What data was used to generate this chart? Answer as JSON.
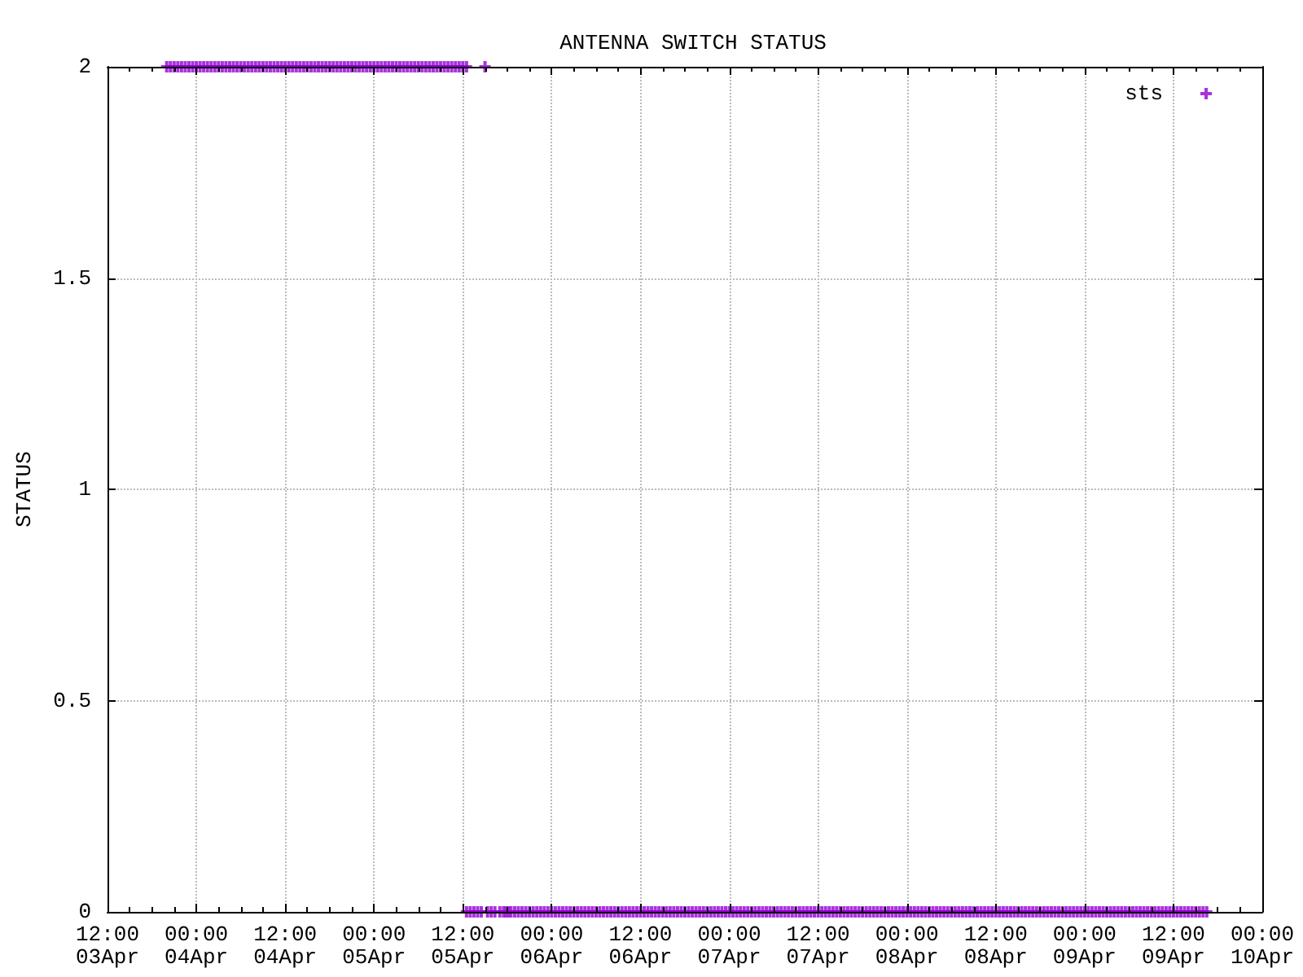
{
  "chart_data": {
    "type": "scatter",
    "title": "ANTENNA SWITCH STATUS",
    "ylabel": "STATUS",
    "x": [
      "--04-03T20:00",
      "--04-03T20:30",
      "--04-03T21:00",
      "--04-03T21:30",
      "--04-03T22:00",
      "--04-03T22:30",
      "--04-03T23:00",
      "--04-03T23:30",
      "--04-04T00:00",
      "--04-04T00:30",
      "--04-04T01:00",
      "--04-04T01:30",
      "--04-04T02:00",
      "--04-04T02:30",
      "--04-04T03:00",
      "--04-04T03:30",
      "--04-04T04:00",
      "--04-04T04:30",
      "--04-04T05:00",
      "--04-04T05:30",
      "--04-04T06:00",
      "--04-04T06:30",
      "--04-04T07:00",
      "--04-04T07:30",
      "--04-04T08:00",
      "--04-04T08:30",
      "--04-04T09:00",
      "--04-04T09:30",
      "--04-04T10:00",
      "--04-04T10:30",
      "--04-04T11:00",
      "--04-04T11:30",
      "--04-04T12:00",
      "--04-04T12:30",
      "--04-04T13:00",
      "--04-04T13:30",
      "--04-04T14:00",
      "--04-04T14:30",
      "--04-04T15:00",
      "--04-04T15:30",
      "--04-04T16:00",
      "--04-04T16:30",
      "--04-04T17:00",
      "--04-04T17:30",
      "--04-04T18:00",
      "--04-04T18:30",
      "--04-04T19:00",
      "--04-04T19:30",
      "--04-04T20:00",
      "--04-04T20:30",
      "--04-04T21:00",
      "--04-04T21:30",
      "--04-04T22:00",
      "--04-04T22:30",
      "--04-04T23:00",
      "--04-04T23:30",
      "--04-05T00:00",
      "--04-05T00:30",
      "--04-05T01:00",
      "--04-05T01:30",
      "--04-05T02:00",
      "--04-05T02:30",
      "--04-05T03:00",
      "--04-05T03:30",
      "--04-05T04:00",
      "--04-05T04:30",
      "--04-05T05:00",
      "--04-05T05:30",
      "--04-05T06:00",
      "--04-05T06:30",
      "--04-05T07:00",
      "--04-05T07:30",
      "--04-05T08:00",
      "--04-05T08:30",
      "--04-05T09:00",
      "--04-05T09:30",
      "--04-05T10:00",
      "--04-05T10:30",
      "--04-05T11:00",
      "--04-05T11:30",
      "--04-05T12:00",
      "--04-05T12:30",
      "--04-05T12:30",
      "--04-05T13:00",
      "--04-05T13:30",
      "--04-05T14:00",
      "--04-05T14:30",
      "--04-05T15:00",
      "--04-05T15:20",
      "--04-05T15:50",
      "--04-05T16:20",
      "--04-05T17:00",
      "--04-05T17:30",
      "--04-05T17:50",
      "--04-05T18:10",
      "--04-05T18:30",
      "--04-05T19:00",
      "--04-05T19:30",
      "--04-05T20:00",
      "--04-05T20:30",
      "--04-05T21:00",
      "--04-05T21:30",
      "--04-05T22:00",
      "--04-05T22:30",
      "--04-05T23:00",
      "--04-05T23:30",
      "--04-06T00:00",
      "--04-06T00:30",
      "--04-06T01:00",
      "--04-06T01:30",
      "--04-06T02:00",
      "--04-06T02:30",
      "--04-06T03:00",
      "--04-06T03:30",
      "--04-06T04:00",
      "--04-06T04:30",
      "--04-06T05:00",
      "--04-06T05:30",
      "--04-06T06:00",
      "--04-06T06:30",
      "--04-06T07:00",
      "--04-06T07:30",
      "--04-06T08:00",
      "--04-06T08:30",
      "--04-06T09:00",
      "--04-06T09:30",
      "--04-06T10:00",
      "--04-06T10:30",
      "--04-06T11:00",
      "--04-06T11:30",
      "--04-06T12:00",
      "--04-06T12:30",
      "--04-06T13:00",
      "--04-06T13:30",
      "--04-06T14:00",
      "--04-06T14:30",
      "--04-06T15:00",
      "--04-06T15:30",
      "--04-06T16:00",
      "--04-06T16:30",
      "--04-06T17:00",
      "--04-06T17:30",
      "--04-06T18:00",
      "--04-06T18:30",
      "--04-06T19:00",
      "--04-06T19:30",
      "--04-06T20:00",
      "--04-06T20:30",
      "--04-06T21:00",
      "--04-06T21:30",
      "--04-06T22:00",
      "--04-06T22:30",
      "--04-06T23:00",
      "--04-06T23:30",
      "--04-07T00:00",
      "--04-07T00:30",
      "--04-07T01:00",
      "--04-07T01:30",
      "--04-07T02:00",
      "--04-07T02:30",
      "--04-07T03:00",
      "--04-07T03:30",
      "--04-07T04:00",
      "--04-07T04:30",
      "--04-07T05:00",
      "--04-07T05:30",
      "--04-07T06:00",
      "--04-07T06:30",
      "--04-07T07:00",
      "--04-07T07:30",
      "--04-07T08:00",
      "--04-07T08:30",
      "--04-07T09:00",
      "--04-07T09:30",
      "--04-07T10:00",
      "--04-07T10:30",
      "--04-07T11:00",
      "--04-07T11:30",
      "--04-07T12:00",
      "--04-07T12:30",
      "--04-07T13:00",
      "--04-07T13:30",
      "--04-07T14:00",
      "--04-07T14:30",
      "--04-07T15:00",
      "--04-07T15:30",
      "--04-07T16:00",
      "--04-07T16:30",
      "--04-07T17:00",
      "--04-07T17:30",
      "--04-07T18:00",
      "--04-07T18:30",
      "--04-07T19:00",
      "--04-07T19:30",
      "--04-07T20:00",
      "--04-07T20:30",
      "--04-07T21:00",
      "--04-07T21:30",
      "--04-07T22:00",
      "--04-07T22:30",
      "--04-07T23:00",
      "--04-07T23:30",
      "--04-08T00:00",
      "--04-08T00:30",
      "--04-08T01:00",
      "--04-08T01:30",
      "--04-08T02:00",
      "--04-08T02:30",
      "--04-08T03:00",
      "--04-08T03:30",
      "--04-08T04:00",
      "--04-08T04:30",
      "--04-08T05:00",
      "--04-08T05:30",
      "--04-08T06:00",
      "--04-08T06:30",
      "--04-08T07:00",
      "--04-08T07:30",
      "--04-08T08:00",
      "--04-08T08:30",
      "--04-08T09:00",
      "--04-08T09:30",
      "--04-08T10:00",
      "--04-08T10:30",
      "--04-08T11:00",
      "--04-08T11:30",
      "--04-08T12:00",
      "--04-08T12:30",
      "--04-08T13:00",
      "--04-08T13:30",
      "--04-08T14:00",
      "--04-08T14:30",
      "--04-08T15:00",
      "--04-08T15:30",
      "--04-08T16:00",
      "--04-08T16:30",
      "--04-08T17:00",
      "--04-08T17:30",
      "--04-08T18:00",
      "--04-08T18:30",
      "--04-08T19:00",
      "--04-08T19:30",
      "--04-08T20:00",
      "--04-08T20:30",
      "--04-08T21:00",
      "--04-08T21:30",
      "--04-08T22:00",
      "--04-08T22:30",
      "--04-08T23:00",
      "--04-08T23:30",
      "--04-09T00:00",
      "--04-09T00:30",
      "--04-09T01:00",
      "--04-09T01:30",
      "--04-09T02:00",
      "--04-09T02:30",
      "--04-09T03:00",
      "--04-09T03:30",
      "--04-09T04:00",
      "--04-09T04:30",
      "--04-09T05:00",
      "--04-09T05:30",
      "--04-09T06:00",
      "--04-09T06:30",
      "--04-09T07:00",
      "--04-09T07:30",
      "--04-09T08:00",
      "--04-09T08:30",
      "--04-09T09:00",
      "--04-09T09:30",
      "--04-09T10:00",
      "--04-09T10:30",
      "--04-09T11:00",
      "--04-09T11:30",
      "--04-09T12:00",
      "--04-09T12:30",
      "--04-09T13:00",
      "--04-09T13:30",
      "--04-09T14:00",
      "--04-09T14:30",
      "--04-09T15:00",
      "--04-09T15:30",
      "--04-09T16:00",
      "--04-09T16:30"
    ],
    "series": [
      {
        "name": "sts",
        "color": "#9400d3",
        "values": [
          2,
          2,
          2,
          2,
          2,
          2,
          2,
          2,
          2,
          2,
          2,
          2,
          2,
          2,
          2,
          2,
          2,
          2,
          2,
          2,
          2,
          2,
          2,
          2,
          2,
          2,
          2,
          2,
          2,
          2,
          2,
          2,
          2,
          2,
          2,
          2,
          2,
          2,
          2,
          2,
          2,
          2,
          2,
          2,
          2,
          2,
          2,
          2,
          2,
          2,
          2,
          2,
          2,
          2,
          2,
          2,
          2,
          2,
          2,
          2,
          2,
          2,
          2,
          2,
          2,
          2,
          2,
          2,
          2,
          2,
          2,
          2,
          2,
          2,
          2,
          2,
          2,
          2,
          2,
          2,
          2,
          2,
          0,
          0,
          0,
          0,
          0,
          2,
          0,
          0,
          0,
          0,
          0,
          0,
          0,
          0,
          0,
          0,
          0,
          0,
          0,
          0,
          0,
          0,
          0,
          0,
          0,
          0,
          0,
          0,
          0,
          0,
          0,
          0,
          0,
          0,
          0,
          0,
          0,
          0,
          0,
          0,
          0,
          0,
          0,
          0,
          0,
          0,
          0,
          0,
          0,
          0,
          0,
          0,
          0,
          0,
          0,
          0,
          0,
          0,
          0,
          0,
          0,
          0,
          0,
          0,
          0,
          0,
          0,
          0,
          0,
          0,
          0,
          0,
          0,
          0,
          0,
          0,
          0,
          0,
          0,
          0,
          0,
          0,
          0,
          0,
          0,
          0,
          0,
          0,
          0,
          0,
          0,
          0,
          0,
          0,
          0,
          0,
          0,
          0,
          0,
          0,
          0,
          0,
          0,
          0,
          0,
          0,
          0,
          0,
          0,
          0,
          0,
          0,
          0,
          0,
          0,
          0,
          0,
          0,
          0,
          0,
          0,
          0,
          0,
          0,
          0,
          0,
          0,
          0,
          0,
          0,
          0,
          0,
          0,
          0,
          0,
          0,
          0,
          0,
          0,
          0,
          0,
          0,
          0,
          0,
          0,
          0,
          0,
          0,
          0,
          0,
          0,
          0,
          0,
          0,
          0,
          0,
          0,
          0,
          0,
          0,
          0,
          0,
          0,
          0,
          0,
          0,
          0,
          0,
          0,
          0,
          0,
          0,
          0,
          0,
          0,
          0,
          0,
          0,
          0,
          0,
          0,
          0,
          0,
          0,
          0,
          0,
          0,
          0,
          0,
          0,
          0,
          0,
          0,
          0,
          0,
          0,
          0,
          0,
          0,
          0,
          0,
          0
        ]
      }
    ],
    "xlim": [
      "--04-03T12:00",
      "--04-10T00:00"
    ],
    "xticks": [
      {
        "value": "--04-03T12:00",
        "label": "12:00\n03Apr"
      },
      {
        "value": "--04-03T15:00",
        "label": null
      },
      {
        "value": "--04-03T18:00",
        "label": null
      },
      {
        "value": "--04-03T21:00",
        "label": null
      },
      {
        "value": "--04-04T00:00",
        "label": "00:00\n04Apr"
      },
      {
        "value": "--04-04T03:00",
        "label": null
      },
      {
        "value": "--04-04T06:00",
        "label": null
      },
      {
        "value": "--04-04T09:00",
        "label": null
      },
      {
        "value": "--04-04T12:00",
        "label": "12:00\n04Apr"
      },
      {
        "value": "--04-04T15:00",
        "label": null
      },
      {
        "value": "--04-04T18:00",
        "label": null
      },
      {
        "value": "--04-04T21:00",
        "label": null
      },
      {
        "value": "--04-05T00:00",
        "label": "00:00\n05Apr"
      },
      {
        "value": "--04-05T03:00",
        "label": null
      },
      {
        "value": "--04-05T06:00",
        "label": null
      },
      {
        "value": "--04-05T09:00",
        "label": null
      },
      {
        "value": "--04-05T12:00",
        "label": "12:00\n05Apr"
      },
      {
        "value": "--04-05T15:00",
        "label": null
      },
      {
        "value": "--04-05T18:00",
        "label": null
      },
      {
        "value": "--04-05T21:00",
        "label": null
      },
      {
        "value": "--04-06T00:00",
        "label": "00:00\n06Apr"
      },
      {
        "value": "--04-06T03:00",
        "label": null
      },
      {
        "value": "--04-06T06:00",
        "label": null
      },
      {
        "value": "--04-06T09:00",
        "label": null
      },
      {
        "value": "--04-06T12:00",
        "label": "12:00\n06Apr"
      },
      {
        "value": "--04-06T15:00",
        "label": null
      },
      {
        "value": "--04-06T18:00",
        "label": null
      },
      {
        "value": "--04-06T21:00",
        "label": null
      },
      {
        "value": "--04-07T00:00",
        "label": "00:00\n07Apr"
      },
      {
        "value": "--04-07T03:00",
        "label": null
      },
      {
        "value": "--04-07T06:00",
        "label": null
      },
      {
        "value": "--04-07T09:00",
        "label": null
      },
      {
        "value": "--04-07T12:00",
        "label": "12:00\n07Apr"
      },
      {
        "value": "--04-07T15:00",
        "label": null
      },
      {
        "value": "--04-07T18:00",
        "label": null
      },
      {
        "value": "--04-07T21:00",
        "label": null
      },
      {
        "value": "--04-08T00:00",
        "label": "00:00\n08Apr"
      },
      {
        "value": "--04-08T03:00",
        "label": null
      },
      {
        "value": "--04-08T06:00",
        "label": null
      },
      {
        "value": "--04-08T09:00",
        "label": null
      },
      {
        "value": "--04-08T12:00",
        "label": "12:00\n08Apr"
      },
      {
        "value": "--04-08T15:00",
        "label": null
      },
      {
        "value": "--04-08T18:00",
        "label": null
      },
      {
        "value": "--04-08T21:00",
        "label": null
      },
      {
        "value": "--04-09T00:00",
        "label": "00:00\n09Apr"
      },
      {
        "value": "--04-09T03:00",
        "label": null
      },
      {
        "value": "--04-09T06:00",
        "label": null
      },
      {
        "value": "--04-09T09:00",
        "label": null
      },
      {
        "value": "--04-09T12:00",
        "label": "12:00\n09Apr"
      },
      {
        "value": "--04-09T15:00",
        "label": null
      },
      {
        "value": "--04-09T18:00",
        "label": null
      },
      {
        "value": "--04-09T21:00",
        "label": null
      },
      {
        "value": "--04-10T00:00",
        "label": "00:00\n10Apr"
      }
    ],
    "ylim": [
      0,
      2
    ],
    "yticks": [
      0,
      0.5,
      1,
      1.5,
      2
    ],
    "grid": true,
    "legend": "top right",
    "marker": "cross"
  }
}
